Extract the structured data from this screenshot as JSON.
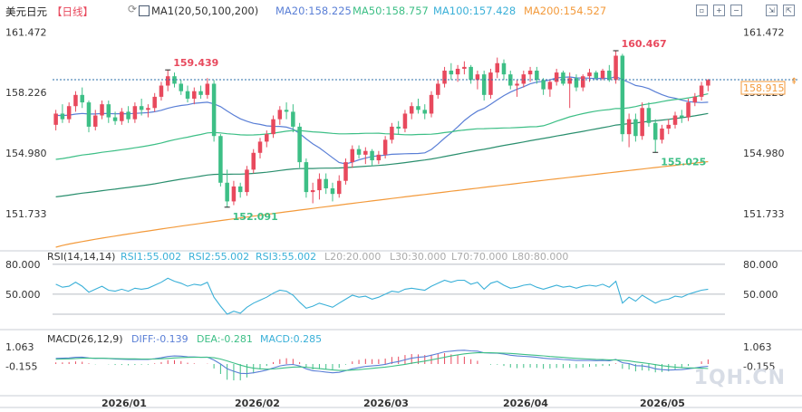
{
  "header": {
    "symbol": "美元日元",
    "period": "【日线】",
    "ma_main": "MA1(20,50,100,200)",
    "ma20": "MA20:158.225",
    "ma50": "MA50:158.757",
    "ma100": "MA100:157.428",
    "ma200": "MA200:154.527",
    "toolbar_icons": [
      "fit-icon",
      "zoom-in-icon",
      "zoom-out-icon",
      "shrink-icon",
      "maximize-icon"
    ]
  },
  "colors": {
    "up": "#e8495d",
    "down": "#3dbf86",
    "ma20": "#5a7fd6",
    "ma50": "#3dbf86",
    "ma100": "#2a8f6e",
    "ma200": "#f39a3b",
    "rsi": "#3ab0d8",
    "dif": "#5a7fd6",
    "dea": "#3dbf86",
    "price_tag": "#f39a3b"
  },
  "chart_data": [
    {
      "type": "candlestick",
      "title": "美元日元",
      "x_ticks": [
        "2026/01",
        "2026/02",
        "2026/03",
        "2026/04",
        "2026/05"
      ],
      "y_ticks": [
        161.472,
        158.226,
        154.98,
        151.733
      ],
      "ylim": [
        149.9,
        162.6
      ],
      "grid": false,
      "last_price": "158.915",
      "annotations": [
        {
          "label": "159.439",
          "value": 159.439
        },
        {
          "label": "152.091",
          "value": 152.091
        },
        {
          "label": "160.467",
          "value": 160.467
        },
        {
          "label": "155.025",
          "value": 155.025
        }
      ],
      "ohlc": [
        [
          156.5,
          157.3,
          156.2,
          157.1
        ],
        [
          157.1,
          157.6,
          156.6,
          156.8
        ],
        [
          156.8,
          157.7,
          156.6,
          157.5
        ],
        [
          157.5,
          158.3,
          157.2,
          158.1
        ],
        [
          158.1,
          158.5,
          157.4,
          157.7
        ],
        [
          157.7,
          157.8,
          156.1,
          156.4
        ],
        [
          156.4,
          157.3,
          156.2,
          157.0
        ],
        [
          157.0,
          157.8,
          156.8,
          157.6
        ],
        [
          157.6,
          157.8,
          156.6,
          156.9
        ],
        [
          156.9,
          157.2,
          156.5,
          156.7
        ],
        [
          156.7,
          157.4,
          156.5,
          157.2
        ],
        [
          157.2,
          157.5,
          156.6,
          156.8
        ],
        [
          156.8,
          157.7,
          156.6,
          157.5
        ],
        [
          157.5,
          157.9,
          157.0,
          157.3
        ],
        [
          157.3,
          157.6,
          156.9,
          157.4
        ],
        [
          157.4,
          158.2,
          157.2,
          158.0
        ],
        [
          158.0,
          158.8,
          157.8,
          158.6
        ],
        [
          158.6,
          159.439,
          158.3,
          159.1
        ],
        [
          159.1,
          159.3,
          158.5,
          158.7
        ],
        [
          158.7,
          158.9,
          158.1,
          158.3
        ],
        [
          158.3,
          158.6,
          157.7,
          157.9
        ],
        [
          157.9,
          158.5,
          157.6,
          158.3
        ],
        [
          158.3,
          158.6,
          157.9,
          158.1
        ],
        [
          158.1,
          159.0,
          157.9,
          158.7
        ],
        [
          158.7,
          158.9,
          155.6,
          155.9
        ],
        [
          155.9,
          156.0,
          153.2,
          153.4
        ],
        [
          153.4,
          154.1,
          152.091,
          152.4
        ],
        [
          152.4,
          153.5,
          152.2,
          153.2
        ],
        [
          153.2,
          153.4,
          152.6,
          152.9
        ],
        [
          152.9,
          154.3,
          152.7,
          154.1
        ],
        [
          154.1,
          155.2,
          153.9,
          155.0
        ],
        [
          155.0,
          155.8,
          154.7,
          155.6
        ],
        [
          155.6,
          156.2,
          155.3,
          156.0
        ],
        [
          156.0,
          157.0,
          155.8,
          156.8
        ],
        [
          156.8,
          157.5,
          156.5,
          157.3
        ],
        [
          157.3,
          157.7,
          156.8,
          157.2
        ],
        [
          157.2,
          157.6,
          156.1,
          156.4
        ],
        [
          156.4,
          156.6,
          154.2,
          154.5
        ],
        [
          154.5,
          154.7,
          152.6,
          152.9
        ],
        [
          152.9,
          153.4,
          152.3,
          153.0
        ],
        [
          153.0,
          153.9,
          152.5,
          153.6
        ],
        [
          153.6,
          153.9,
          152.8,
          153.1
        ],
        [
          153.1,
          153.4,
          152.4,
          152.8
        ],
        [
          152.8,
          153.8,
          152.6,
          153.5
        ],
        [
          153.5,
          154.7,
          153.3,
          154.5
        ],
        [
          154.5,
          155.4,
          154.2,
          155.2
        ],
        [
          155.2,
          155.4,
          154.7,
          154.9
        ],
        [
          154.9,
          155.3,
          154.4,
          155.1
        ],
        [
          155.1,
          155.2,
          154.3,
          154.6
        ],
        [
          154.6,
          155.1,
          154.4,
          154.9
        ],
        [
          154.9,
          155.9,
          154.7,
          155.7
        ],
        [
          155.7,
          156.6,
          155.5,
          156.4
        ],
        [
          156.4,
          156.7,
          156.0,
          156.3
        ],
        [
          156.3,
          157.3,
          156.1,
          157.1
        ],
        [
          157.1,
          157.7,
          156.8,
          157.5
        ],
        [
          157.5,
          157.9,
          157.1,
          157.3
        ],
        [
          157.3,
          157.6,
          156.8,
          157.1
        ],
        [
          157.1,
          158.3,
          156.9,
          158.1
        ],
        [
          158.1,
          158.9,
          157.9,
          158.7
        ],
        [
          158.7,
          159.6,
          158.5,
          159.4
        ],
        [
          159.4,
          159.8,
          158.9,
          159.2
        ],
        [
          159.2,
          159.7,
          158.8,
          159.5
        ],
        [
          159.5,
          159.9,
          159.2,
          159.6
        ],
        [
          159.6,
          159.7,
          158.7,
          158.9
        ],
        [
          158.9,
          159.4,
          158.4,
          159.2
        ],
        [
          159.2,
          159.4,
          157.8,
          158.1
        ],
        [
          158.1,
          159.5,
          157.9,
          159.3
        ],
        [
          159.3,
          160.1,
          159.0,
          159.8
        ],
        [
          159.8,
          160.0,
          158.9,
          159.2
        ],
        [
          159.2,
          159.4,
          158.4,
          158.6
        ],
        [
          158.6,
          158.9,
          158.0,
          158.7
        ],
        [
          158.7,
          159.4,
          158.5,
          159.2
        ],
        [
          159.2,
          159.6,
          158.8,
          159.4
        ],
        [
          159.4,
          159.6,
          158.7,
          158.9
        ],
        [
          158.9,
          159.0,
          158.1,
          158.4
        ],
        [
          158.4,
          158.9,
          158.0,
          158.8
        ],
        [
          158.8,
          159.5,
          158.6,
          159.3
        ],
        [
          159.3,
          159.4,
          158.6,
          158.7
        ],
        [
          158.7,
          159.3,
          157.4,
          159.0
        ],
        [
          159.0,
          159.2,
          158.3,
          158.5
        ],
        [
          158.5,
          159.2,
          158.3,
          159.1
        ],
        [
          159.1,
          159.5,
          158.8,
          159.3
        ],
        [
          159.3,
          159.4,
          158.9,
          159.0
        ],
        [
          159.0,
          159.5,
          158.9,
          159.4
        ],
        [
          159.4,
          159.7,
          158.8,
          158.9
        ],
        [
          158.9,
          160.467,
          158.7,
          160.2
        ],
        [
          160.2,
          160.3,
          155.6,
          156.0
        ],
        [
          156.0,
          157.1,
          155.3,
          156.8
        ],
        [
          156.8,
          157.1,
          155.6,
          155.9
        ],
        [
          155.9,
          157.7,
          155.7,
          157.4
        ],
        [
          157.4,
          157.7,
          156.4,
          156.6
        ],
        [
          156.6,
          156.8,
          155.025,
          155.7
        ],
        [
          155.7,
          156.5,
          155.5,
          156.3
        ],
        [
          156.3,
          156.8,
          156.0,
          156.5
        ],
        [
          156.5,
          157.2,
          156.3,
          157.0
        ],
        [
          157.0,
          157.3,
          156.6,
          156.9
        ],
        [
          156.9,
          157.9,
          156.7,
          157.7
        ],
        [
          157.7,
          158.2,
          157.5,
          158.0
        ],
        [
          158.0,
          158.8,
          157.8,
          158.6
        ],
        [
          158.6,
          158.95,
          158.3,
          158.9
        ]
      ]
    },
    {
      "type": "line",
      "title": "RSI(14,14,14)",
      "legend": [
        "RSI1:55.002",
        "RSI2:55.002",
        "RSI3:55.002",
        "L20:20.000",
        "L30:30.000",
        "L70:70.000",
        "L80:80.000"
      ],
      "y_ticks": [
        80,
        50
      ],
      "ylim": [
        20,
        88
      ],
      "reference_lines": [
        80,
        50,
        30
      ],
      "values": [
        60,
        57,
        58,
        62,
        58,
        52,
        55,
        58,
        54,
        53,
        55,
        53,
        56,
        55,
        56,
        59,
        62,
        66,
        63,
        61,
        58,
        60,
        59,
        62,
        47,
        38,
        30,
        33,
        31,
        37,
        41,
        44,
        47,
        51,
        54,
        53,
        49,
        42,
        36,
        38,
        41,
        39,
        37,
        41,
        45,
        49,
        47,
        48,
        45,
        47,
        50,
        53,
        52,
        55,
        56,
        55,
        54,
        58,
        61,
        64,
        62,
        64,
        64,
        60,
        62,
        55,
        61,
        63,
        59,
        56,
        57,
        59,
        60,
        57,
        55,
        57,
        59,
        57,
        58,
        56,
        58,
        59,
        58,
        60,
        57,
        63,
        41,
        47,
        43,
        49,
        45,
        41,
        44,
        45,
        48,
        47,
        50,
        52,
        54,
        55
      ]
    },
    {
      "type": "bar",
      "title": "MACD(26,12,9)",
      "legend": [
        "DIFF:-0.139",
        "DEA:-0.281",
        "MACD:0.285"
      ],
      "y_ticks": [
        1.063,
        -0.155
      ],
      "ylim": [
        -1.75,
        1.75
      ],
      "dif": [
        0.35,
        0.36,
        0.38,
        0.42,
        0.43,
        0.38,
        0.35,
        0.36,
        0.34,
        0.31,
        0.3,
        0.28,
        0.29,
        0.29,
        0.29,
        0.33,
        0.39,
        0.47,
        0.5,
        0.49,
        0.45,
        0.44,
        0.42,
        0.43,
        0.25,
        0.0,
        -0.3,
        -0.45,
        -0.58,
        -0.6,
        -0.55,
        -0.47,
        -0.38,
        -0.25,
        -0.12,
        -0.05,
        -0.03,
        -0.12,
        -0.3,
        -0.42,
        -0.45,
        -0.5,
        -0.55,
        -0.52,
        -0.42,
        -0.3,
        -0.22,
        -0.15,
        -0.12,
        -0.08,
        -0.02,
        0.08,
        0.15,
        0.26,
        0.36,
        0.42,
        0.46,
        0.55,
        0.65,
        0.76,
        0.8,
        0.84,
        0.86,
        0.82,
        0.8,
        0.7,
        0.68,
        0.67,
        0.62,
        0.55,
        0.5,
        0.48,
        0.46,
        0.42,
        0.36,
        0.33,
        0.32,
        0.28,
        0.26,
        0.22,
        0.22,
        0.22,
        0.21,
        0.22,
        0.2,
        0.28,
        0.08,
        0.02,
        -0.1,
        -0.12,
        -0.18,
        -0.3,
        -0.35,
        -0.38,
        -0.36,
        -0.35,
        -0.3,
        -0.25,
        -0.18,
        -0.139
      ],
      "dea": [
        0.3,
        0.31,
        0.32,
        0.34,
        0.36,
        0.36,
        0.36,
        0.36,
        0.35,
        0.34,
        0.33,
        0.32,
        0.32,
        0.31,
        0.31,
        0.31,
        0.33,
        0.35,
        0.38,
        0.4,
        0.41,
        0.42,
        0.42,
        0.42,
        0.39,
        0.31,
        0.19,
        0.06,
        -0.07,
        -0.18,
        -0.26,
        -0.3,
        -0.32,
        -0.31,
        -0.27,
        -0.23,
        -0.19,
        -0.18,
        -0.2,
        -0.25,
        -0.29,
        -0.33,
        -0.37,
        -0.4,
        -0.4,
        -0.38,
        -0.35,
        -0.31,
        -0.27,
        -0.23,
        -0.19,
        -0.14,
        -0.08,
        -0.02,
        0.05,
        0.12,
        0.18,
        0.26,
        0.34,
        0.42,
        0.5,
        0.57,
        0.63,
        0.67,
        0.7,
        0.7,
        0.7,
        0.69,
        0.68,
        0.66,
        0.63,
        0.6,
        0.57,
        0.54,
        0.51,
        0.47,
        0.44,
        0.41,
        0.38,
        0.35,
        0.33,
        0.31,
        0.29,
        0.28,
        0.26,
        0.26,
        0.23,
        0.19,
        0.13,
        0.08,
        0.03,
        -0.04,
        -0.1,
        -0.15,
        -0.19,
        -0.22,
        -0.24,
        -0.25,
        -0.26,
        -0.281
      ]
    }
  ]
}
